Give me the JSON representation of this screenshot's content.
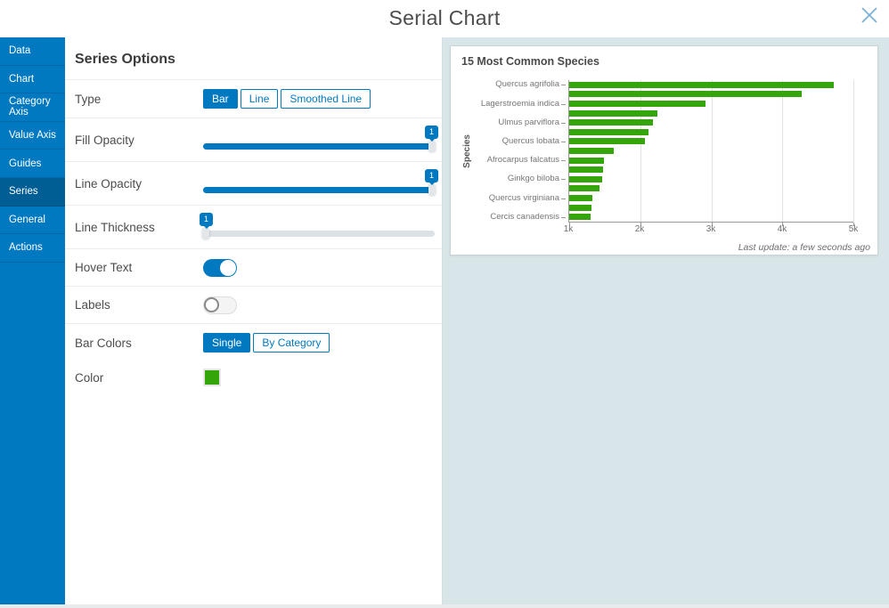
{
  "window": {
    "title": "Serial Chart"
  },
  "sidebar": {
    "items": [
      {
        "label": "Data",
        "selected": false
      },
      {
        "label": "Chart",
        "selected": false
      },
      {
        "label": "Category Axis",
        "selected": false
      },
      {
        "label": "Value Axis",
        "selected": false
      },
      {
        "label": "Guides",
        "selected": false
      },
      {
        "label": "Series",
        "selected": true
      },
      {
        "label": "General",
        "selected": false
      },
      {
        "label": "Actions",
        "selected": false
      }
    ]
  },
  "options": {
    "header": "Series Options",
    "type": {
      "label": "Type",
      "options": [
        "Bar",
        "Line",
        "Smoothed Line"
      ],
      "selected": "Bar"
    },
    "fill_opacity": {
      "label": "Fill Opacity",
      "value": "1"
    },
    "line_opacity": {
      "label": "Line Opacity",
      "value": "1"
    },
    "line_thickness": {
      "label": "Line Thickness",
      "value": "1"
    },
    "hover_text": {
      "label": "Hover Text",
      "on": true
    },
    "labels": {
      "label": "Labels",
      "on": false
    },
    "bar_colors": {
      "label": "Bar Colors",
      "options": [
        "Single",
        "By Category"
      ],
      "selected": "Single"
    },
    "color": {
      "label": "Color",
      "value": "#34a60b"
    }
  },
  "preview": {
    "card_title": "15 Most Common Species",
    "last_update": "Last update: a few seconds ago"
  },
  "chart_data": {
    "type": "bar",
    "orientation": "horizontal",
    "title": "15 Most Common Species",
    "ylabel": "Species",
    "xlim": [
      1000,
      5000
    ],
    "x_ticks": [
      {
        "value": 1000,
        "label": "1k"
      },
      {
        "value": 2000,
        "label": "2k"
      },
      {
        "value": 3000,
        "label": "3k"
      },
      {
        "value": 4000,
        "label": "4k"
      },
      {
        "value": 5000,
        "label": "5k"
      }
    ],
    "values": [
      4730,
      4270,
      2920,
      2240,
      2180,
      2110,
      2070,
      1630,
      1490,
      1480,
      1470,
      1430,
      1330,
      1310,
      1300
    ],
    "visible_labels": [
      "Quercus agrifolia",
      "Lagerstroemia indica",
      "Ulmus parviflora",
      "Quercus lobata",
      "Afrocarpus falcatus",
      "Ginkgo biloba",
      "Quercus virginiana",
      "Cercis canadensis"
    ],
    "label_every": 2,
    "bar_color": "#34a60b",
    "grid": true,
    "legend": false
  }
}
